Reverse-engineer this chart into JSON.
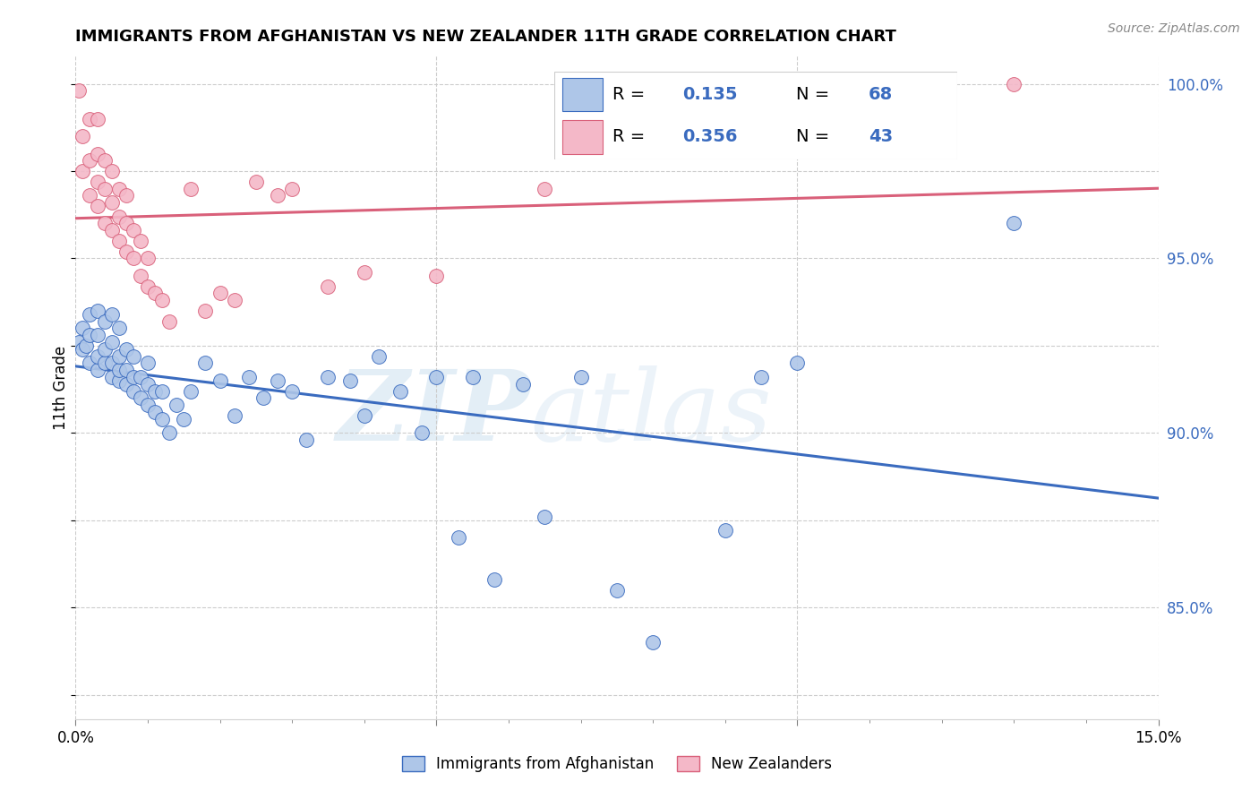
{
  "title": "IMMIGRANTS FROM AFGHANISTAN VS NEW ZEALANDER 11TH GRADE CORRELATION CHART",
  "source": "Source: ZipAtlas.com",
  "ylabel": "11th Grade",
  "xlim": [
    0.0,
    0.15
  ],
  "ylim": [
    0.818,
    1.008
  ],
  "blue_color": "#aec6e8",
  "pink_color": "#f4b8c8",
  "blue_line_color": "#3a6bbf",
  "pink_line_color": "#d9607a",
  "R_blue": "0.135",
  "N_blue": "68",
  "R_pink": "0.356",
  "N_pink": "43",
  "legend_label_blue": "Immigrants from Afghanistan",
  "legend_label_pink": "New Zealanders",
  "watermark_zip": "ZIP",
  "watermark_atlas": "atlas",
  "blue_scatter_x": [
    0.0005,
    0.001,
    0.001,
    0.0015,
    0.002,
    0.002,
    0.002,
    0.003,
    0.003,
    0.003,
    0.003,
    0.004,
    0.004,
    0.004,
    0.005,
    0.005,
    0.005,
    0.005,
    0.006,
    0.006,
    0.006,
    0.006,
    0.007,
    0.007,
    0.007,
    0.008,
    0.008,
    0.008,
    0.009,
    0.009,
    0.01,
    0.01,
    0.01,
    0.011,
    0.011,
    0.012,
    0.012,
    0.013,
    0.014,
    0.015,
    0.016,
    0.018,
    0.02,
    0.022,
    0.024,
    0.026,
    0.028,
    0.03,
    0.032,
    0.035,
    0.038,
    0.04,
    0.042,
    0.045,
    0.048,
    0.05,
    0.053,
    0.055,
    0.058,
    0.062,
    0.065,
    0.07,
    0.075,
    0.08,
    0.09,
    0.095,
    0.1,
    0.13
  ],
  "blue_scatter_y": [
    0.926,
    0.924,
    0.93,
    0.925,
    0.92,
    0.928,
    0.934,
    0.918,
    0.922,
    0.928,
    0.935,
    0.92,
    0.924,
    0.932,
    0.916,
    0.92,
    0.926,
    0.934,
    0.915,
    0.918,
    0.922,
    0.93,
    0.914,
    0.918,
    0.924,
    0.912,
    0.916,
    0.922,
    0.91,
    0.916,
    0.908,
    0.914,
    0.92,
    0.906,
    0.912,
    0.904,
    0.912,
    0.9,
    0.908,
    0.904,
    0.912,
    0.92,
    0.915,
    0.905,
    0.916,
    0.91,
    0.915,
    0.912,
    0.898,
    0.916,
    0.915,
    0.905,
    0.922,
    0.912,
    0.9,
    0.916,
    0.87,
    0.916,
    0.858,
    0.914,
    0.876,
    0.916,
    0.855,
    0.84,
    0.872,
    0.916,
    0.92,
    0.96
  ],
  "pink_scatter_x": [
    0.0005,
    0.001,
    0.001,
    0.002,
    0.002,
    0.002,
    0.003,
    0.003,
    0.003,
    0.003,
    0.004,
    0.004,
    0.004,
    0.005,
    0.005,
    0.005,
    0.006,
    0.006,
    0.006,
    0.007,
    0.007,
    0.007,
    0.008,
    0.008,
    0.009,
    0.009,
    0.01,
    0.01,
    0.011,
    0.012,
    0.013,
    0.016,
    0.018,
    0.02,
    0.022,
    0.025,
    0.028,
    0.03,
    0.035,
    0.04,
    0.05,
    0.065,
    0.13
  ],
  "pink_scatter_y": [
    0.998,
    0.975,
    0.985,
    0.968,
    0.978,
    0.99,
    0.965,
    0.972,
    0.98,
    0.99,
    0.96,
    0.97,
    0.978,
    0.958,
    0.966,
    0.975,
    0.955,
    0.962,
    0.97,
    0.952,
    0.96,
    0.968,
    0.95,
    0.958,
    0.945,
    0.955,
    0.942,
    0.95,
    0.94,
    0.938,
    0.932,
    0.97,
    0.935,
    0.94,
    0.938,
    0.972,
    0.968,
    0.97,
    0.942,
    0.946,
    0.945,
    0.97,
    1.0
  ],
  "y_tick_right": [
    0.85,
    0.9,
    0.95,
    1.0
  ],
  "y_tick_right_labels": [
    "85.0%",
    "90.0%",
    "95.0%",
    "100.0%"
  ]
}
